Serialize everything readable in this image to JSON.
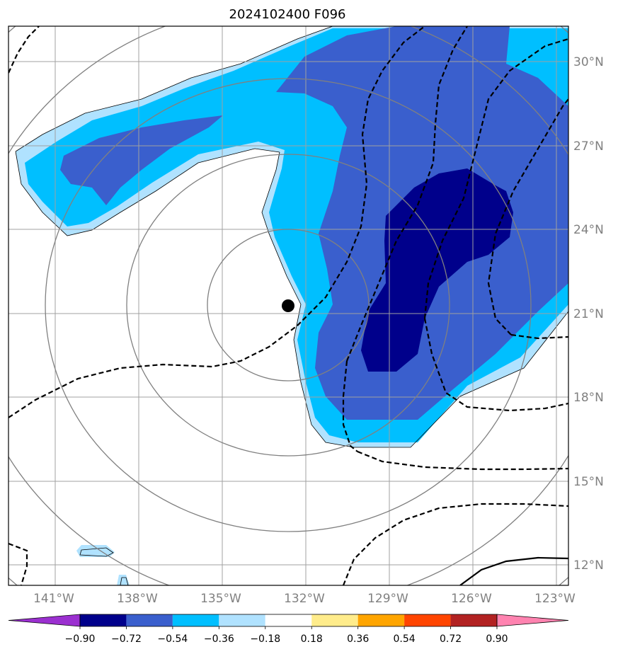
{
  "title": "2024102400 F096",
  "map": {
    "longitude_labels": [
      "141°W",
      "138°W",
      "135°W",
      "132°W",
      "129°W",
      "126°W",
      "123°W"
    ],
    "latitude_labels": [
      "30°N",
      "27°N",
      "24°N",
      "21°N",
      "18°N",
      "15°N",
      "12°N"
    ],
    "storm_center": {
      "lon": "132.7°W",
      "lat": "21.3°N"
    }
  },
  "colorbar": {
    "labels": [
      "−0.90",
      "−0.72",
      "−0.54",
      "−0.36",
      "−0.18",
      "0.18",
      "0.36",
      "0.54",
      "0.72",
      "0.90"
    ],
    "colors": [
      "#9b30d0",
      "#00008b",
      "#3a5fcd",
      "#00bfff",
      "#b0e2ff",
      "#ffffff",
      "#ffec8b",
      "#ffa500",
      "#ff4500",
      "#b22222",
      "#ff83b0"
    ]
  },
  "colors": {
    "frame": "#000000",
    "grid": "#a0a0a0",
    "range_rings": "#808080",
    "contour": "#000000"
  }
}
